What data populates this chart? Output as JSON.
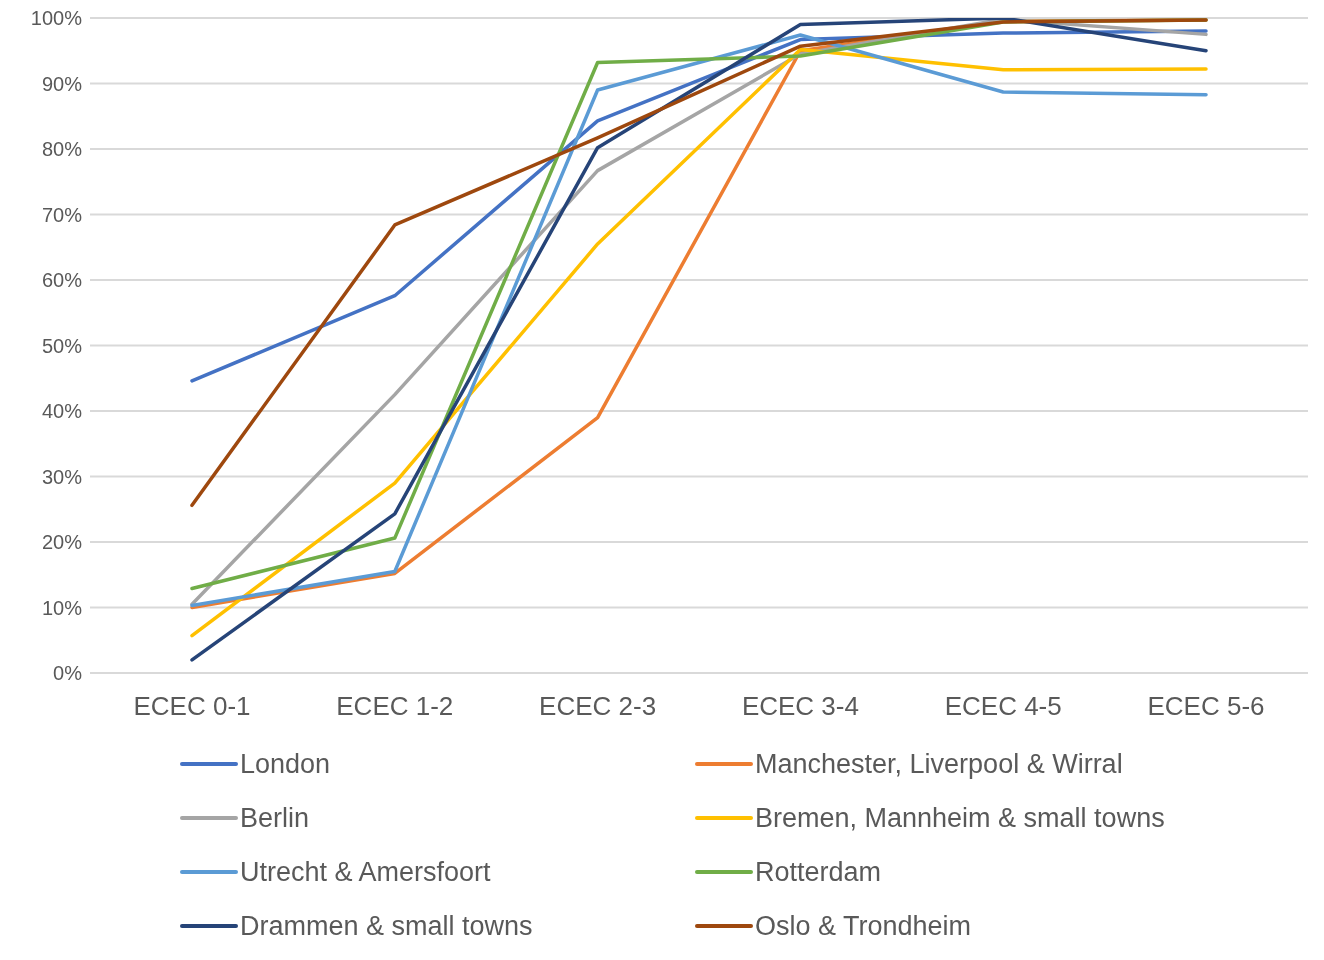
{
  "chart_data": {
    "type": "line",
    "categories": [
      "ECEC 0-1",
      "ECEC 1-2",
      "ECEC 2-3",
      "ECEC 3-4",
      "ECEC 4-5",
      "ECEC 5-6"
    ],
    "series": [
      {
        "name": "London",
        "color": "#4472c4",
        "values": [
          44.6,
          57.6,
          84.3,
          96.7,
          97.7,
          98.0
        ]
      },
      {
        "name": "Manchester, Liverpool & Wirral",
        "color": "#ed7d31",
        "values": [
          10.0,
          15.2,
          39.0,
          95.0,
          99.5,
          99.7
        ]
      },
      {
        "name": "Berlin",
        "color": "#a5a5a5",
        "values": [
          10.5,
          42.5,
          76.7,
          94.5,
          99.8,
          97.5
        ]
      },
      {
        "name": "Bremen, Mannheim & small towns",
        "color": "#ffc000",
        "values": [
          5.7,
          29.0,
          65.5,
          95.2,
          92.1,
          92.2
        ]
      },
      {
        "name": "Utrecht & Amersfoort",
        "color": "#5b9bd5",
        "values": [
          10.3,
          15.5,
          89.0,
          97.4,
          88.7,
          88.3
        ]
      },
      {
        "name": "Rotterdam",
        "color": "#70ad47",
        "values": [
          12.9,
          20.6,
          93.2,
          94.2,
          99.4,
          99.7
        ]
      },
      {
        "name": "Drammen & small towns",
        "color": "#264478",
        "values": [
          2.0,
          24.3,
          80.2,
          99.0,
          100.0,
          95.0
        ]
      },
      {
        "name": "Oslo & Trondheim",
        "color": "#9e480e",
        "values": [
          25.6,
          68.4,
          81.7,
          95.7,
          99.4,
          99.7
        ]
      }
    ],
    "ylim": [
      0,
      100
    ],
    "yticks": [
      {
        "value": 0,
        "label": "0%"
      },
      {
        "value": 10,
        "label": "10%"
      },
      {
        "value": 20,
        "label": "20%"
      },
      {
        "value": 30,
        "label": "30%"
      },
      {
        "value": 40,
        "label": "40%"
      },
      {
        "value": 50,
        "label": "50%"
      },
      {
        "value": 60,
        "label": "60%"
      },
      {
        "value": 70,
        "label": "70%"
      },
      {
        "value": 80,
        "label": "80%"
      },
      {
        "value": 90,
        "label": "90%"
      },
      {
        "value": 100,
        "label": "100%"
      }
    ],
    "grid": "y",
    "legend": "bottom",
    "marker": "none",
    "line_style": "solid"
  }
}
